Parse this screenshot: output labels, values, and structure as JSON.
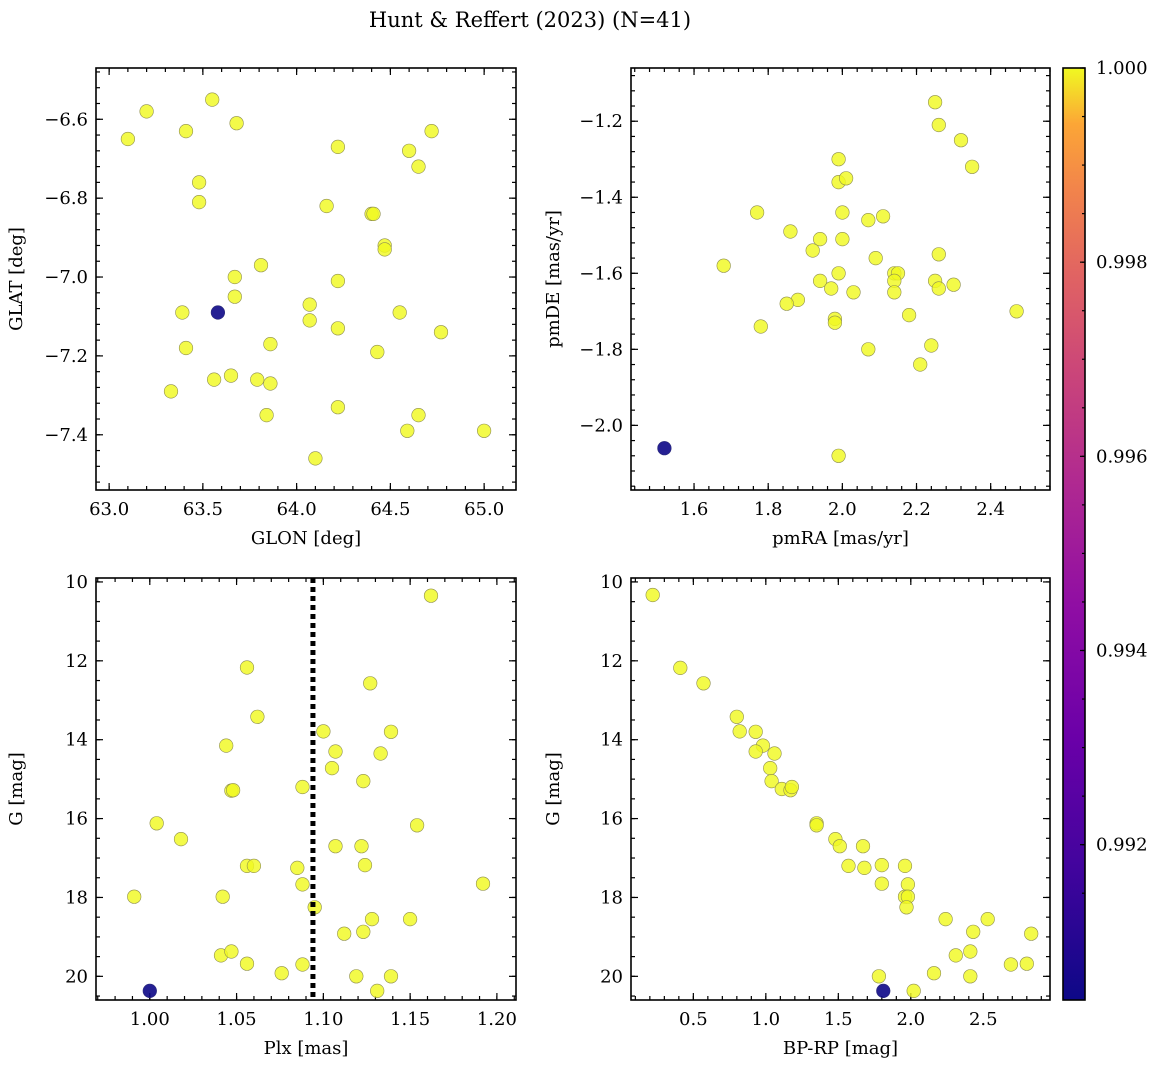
{
  "title": "Hunt & Reffert (2023) (N=41)",
  "colorbar": {
    "cmap": "plasma",
    "vmin": 0.9904,
    "vmax": 1.0,
    "ticks": [
      0.992,
      0.994,
      0.996,
      0.998,
      1.0
    ],
    "tick_labels": [
      "0.992",
      "0.994",
      "0.996",
      "0.998",
      "1.000"
    ]
  },
  "chart_data": [
    {
      "type": "scatter",
      "xlabel": "GLON [deg]",
      "ylabel": "GLAT [deg]",
      "xlim": [
        62.93,
        65.17
      ],
      "ylim": [
        -7.54,
        -6.47
      ],
      "xticks": [
        63.0,
        63.5,
        64.0,
        64.5,
        65.0
      ],
      "xtick_labels": [
        "63.0",
        "63.5",
        "64.0",
        "64.5",
        "65.0"
      ],
      "yticks": [
        -7.4,
        -7.2,
        -7.0,
        -6.8,
        -6.6
      ],
      "ytick_labels": [
        "−7.4",
        "−7.2",
        "−7.0",
        "−6.8",
        "−6.6"
      ],
      "y_inverted": false,
      "points": [
        {
          "x": 63.1,
          "y": -6.65,
          "c": 1.0
        },
        {
          "x": 63.2,
          "y": -6.58,
          "c": 1.0
        },
        {
          "x": 63.41,
          "y": -6.63,
          "c": 1.0
        },
        {
          "x": 63.55,
          "y": -6.55,
          "c": 1.0
        },
        {
          "x": 63.68,
          "y": -6.61,
          "c": 1.0
        },
        {
          "x": 63.48,
          "y": -6.76,
          "c": 1.0
        },
        {
          "x": 63.48,
          "y": -6.81,
          "c": 1.0
        },
        {
          "x": 63.67,
          "y": -7.0,
          "c": 1.0
        },
        {
          "x": 63.67,
          "y": -7.05,
          "c": 1.0
        },
        {
          "x": 63.81,
          "y": -6.97,
          "c": 1.0
        },
        {
          "x": 63.39,
          "y": -7.09,
          "c": 1.0
        },
        {
          "x": 63.41,
          "y": -7.18,
          "c": 1.0
        },
        {
          "x": 63.86,
          "y": -7.17,
          "c": 1.0
        },
        {
          "x": 63.33,
          "y": -7.29,
          "c": 1.0
        },
        {
          "x": 63.56,
          "y": -7.26,
          "c": 1.0
        },
        {
          "x": 63.65,
          "y": -7.25,
          "c": 1.0
        },
        {
          "x": 63.79,
          "y": -7.26,
          "c": 1.0
        },
        {
          "x": 63.86,
          "y": -7.27,
          "c": 1.0
        },
        {
          "x": 63.84,
          "y": -7.35,
          "c": 1.0
        },
        {
          "x": 64.22,
          "y": -6.67,
          "c": 1.0
        },
        {
          "x": 64.16,
          "y": -6.82,
          "c": 1.0
        },
        {
          "x": 64.4,
          "y": -6.84,
          "c": 1.0
        },
        {
          "x": 64.41,
          "y": -6.84,
          "c": 1.0
        },
        {
          "x": 64.47,
          "y": -6.92,
          "c": 1.0
        },
        {
          "x": 64.47,
          "y": -6.93,
          "c": 1.0
        },
        {
          "x": 64.22,
          "y": -7.01,
          "c": 1.0
        },
        {
          "x": 64.07,
          "y": -7.07,
          "c": 1.0
        },
        {
          "x": 64.07,
          "y": -7.11,
          "c": 1.0
        },
        {
          "x": 64.22,
          "y": -7.13,
          "c": 1.0
        },
        {
          "x": 64.55,
          "y": -7.09,
          "c": 1.0
        },
        {
          "x": 64.43,
          "y": -7.19,
          "c": 1.0
        },
        {
          "x": 64.6,
          "y": -6.68,
          "c": 1.0
        },
        {
          "x": 64.72,
          "y": -6.63,
          "c": 1.0
        },
        {
          "x": 64.65,
          "y": -6.72,
          "c": 1.0
        },
        {
          "x": 64.77,
          "y": -7.14,
          "c": 1.0
        },
        {
          "x": 64.22,
          "y": -7.33,
          "c": 1.0
        },
        {
          "x": 64.65,
          "y": -7.35,
          "c": 1.0
        },
        {
          "x": 64.59,
          "y": -7.39,
          "c": 1.0
        },
        {
          "x": 64.1,
          "y": -7.46,
          "c": 1.0
        },
        {
          "x": 65.0,
          "y": -7.39,
          "c": 1.0
        },
        {
          "x": 63.58,
          "y": -7.09,
          "c": 0.9904
        }
      ]
    },
    {
      "type": "scatter",
      "xlabel": "pmRA [mas/yr]",
      "ylabel": "pmDE [mas/yr]",
      "xlim": [
        1.43,
        2.56
      ],
      "ylim": [
        -2.17,
        -1.06
      ],
      "xticks": [
        1.6,
        1.8,
        2.0,
        2.2,
        2.4
      ],
      "xtick_labels": [
        "1.6",
        "1.8",
        "2.0",
        "2.2",
        "2.4"
      ],
      "yticks": [
        -2.0,
        -1.8,
        -1.6,
        -1.4,
        -1.2
      ],
      "ytick_labels": [
        "−2.0",
        "−1.8",
        "−1.6",
        "−1.4",
        "−1.2"
      ],
      "y_inverted": false,
      "points": [
        {
          "x": 2.25,
          "y": -1.15,
          "c": 1.0
        },
        {
          "x": 2.26,
          "y": -1.21,
          "c": 1.0
        },
        {
          "x": 2.32,
          "y": -1.25,
          "c": 1.0
        },
        {
          "x": 2.35,
          "y": -1.32,
          "c": 1.0
        },
        {
          "x": 1.99,
          "y": -1.3,
          "c": 1.0
        },
        {
          "x": 1.99,
          "y": -1.36,
          "c": 1.0
        },
        {
          "x": 2.01,
          "y": -1.35,
          "c": 1.0
        },
        {
          "x": 1.77,
          "y": -1.44,
          "c": 1.0
        },
        {
          "x": 2.0,
          "y": -1.44,
          "c": 1.0
        },
        {
          "x": 2.07,
          "y": -1.46,
          "c": 1.0
        },
        {
          "x": 2.11,
          "y": -1.45,
          "c": 1.0
        },
        {
          "x": 1.86,
          "y": -1.49,
          "c": 1.0
        },
        {
          "x": 1.94,
          "y": -1.51,
          "c": 1.0
        },
        {
          "x": 2.0,
          "y": -1.51,
          "c": 1.0
        },
        {
          "x": 1.92,
          "y": -1.54,
          "c": 1.0
        },
        {
          "x": 1.68,
          "y": -1.58,
          "c": 1.0
        },
        {
          "x": 2.09,
          "y": -1.56,
          "c": 1.0
        },
        {
          "x": 2.26,
          "y": -1.55,
          "c": 1.0
        },
        {
          "x": 1.99,
          "y": -1.6,
          "c": 1.0
        },
        {
          "x": 1.94,
          "y": -1.62,
          "c": 1.0
        },
        {
          "x": 2.14,
          "y": -1.6,
          "c": 1.0
        },
        {
          "x": 2.15,
          "y": -1.6,
          "c": 1.0
        },
        {
          "x": 2.14,
          "y": -1.62,
          "c": 1.0
        },
        {
          "x": 2.25,
          "y": -1.62,
          "c": 1.0
        },
        {
          "x": 2.26,
          "y": -1.64,
          "c": 1.0
        },
        {
          "x": 2.3,
          "y": -1.63,
          "c": 1.0
        },
        {
          "x": 1.97,
          "y": -1.64,
          "c": 1.0
        },
        {
          "x": 2.03,
          "y": -1.65,
          "c": 1.0
        },
        {
          "x": 2.14,
          "y": -1.65,
          "c": 1.0
        },
        {
          "x": 1.88,
          "y": -1.67,
          "c": 1.0
        },
        {
          "x": 1.85,
          "y": -1.68,
          "c": 1.0
        },
        {
          "x": 2.18,
          "y": -1.71,
          "c": 1.0
        },
        {
          "x": 2.47,
          "y": -1.7,
          "c": 1.0
        },
        {
          "x": 1.98,
          "y": -1.72,
          "c": 1.0
        },
        {
          "x": 1.98,
          "y": -1.73,
          "c": 1.0
        },
        {
          "x": 1.78,
          "y": -1.74,
          "c": 1.0
        },
        {
          "x": 2.24,
          "y": -1.79,
          "c": 1.0
        },
        {
          "x": 2.07,
          "y": -1.8,
          "c": 1.0
        },
        {
          "x": 2.21,
          "y": -1.84,
          "c": 1.0
        },
        {
          "x": 1.99,
          "y": -2.08,
          "c": 1.0
        },
        {
          "x": 1.52,
          "y": -2.06,
          "c": 0.9904
        }
      ]
    },
    {
      "type": "scatter",
      "xlabel": "Plx [mas]",
      "ylabel": "G [mag]",
      "xlim": [
        0.969,
        1.211
      ],
      "ylim": [
        20.6,
        9.9
      ],
      "xticks": [
        1.0,
        1.05,
        1.1,
        1.15,
        1.2
      ],
      "xtick_labels": [
        "1.00",
        "1.05",
        "1.10",
        "1.15",
        "1.20"
      ],
      "yticks": [
        10,
        12,
        14,
        16,
        18,
        20
      ],
      "ytick_labels": [
        "10",
        "12",
        "14",
        "16",
        "18",
        "20"
      ],
      "y_inverted": true,
      "vline": 1.094,
      "points": [
        {
          "x": 1.162,
          "y": 10.35,
          "c": 1.0
        },
        {
          "x": 1.056,
          "y": 12.17,
          "c": 1.0
        },
        {
          "x": 1.127,
          "y": 12.57,
          "c": 1.0
        },
        {
          "x": 1.062,
          "y": 13.42,
          "c": 1.0
        },
        {
          "x": 1.1,
          "y": 13.79,
          "c": 1.0
        },
        {
          "x": 1.139,
          "y": 13.8,
          "c": 1.0
        },
        {
          "x": 1.044,
          "y": 14.15,
          "c": 1.0
        },
        {
          "x": 1.107,
          "y": 14.3,
          "c": 1.0
        },
        {
          "x": 1.133,
          "y": 14.35,
          "c": 1.0
        },
        {
          "x": 1.105,
          "y": 14.72,
          "c": 1.0
        },
        {
          "x": 1.123,
          "y": 15.05,
          "c": 1.0
        },
        {
          "x": 1.088,
          "y": 15.2,
          "c": 1.0
        },
        {
          "x": 1.047,
          "y": 15.29,
          "c": 1.0
        },
        {
          "x": 1.048,
          "y": 15.28,
          "c": 1.0
        },
        {
          "x": 1.154,
          "y": 16.17,
          "c": 1.0
        },
        {
          "x": 1.004,
          "y": 16.12,
          "c": 1.0
        },
        {
          "x": 1.018,
          "y": 16.52,
          "c": 1.0
        },
        {
          "x": 1.107,
          "y": 16.7,
          "c": 1.0
        },
        {
          "x": 1.122,
          "y": 16.7,
          "c": 1.0
        },
        {
          "x": 1.056,
          "y": 17.2,
          "c": 1.0
        },
        {
          "x": 1.06,
          "y": 17.2,
          "c": 1.0
        },
        {
          "x": 1.085,
          "y": 17.25,
          "c": 1.0
        },
        {
          "x": 1.124,
          "y": 17.18,
          "c": 1.0
        },
        {
          "x": 1.088,
          "y": 17.67,
          "c": 1.0
        },
        {
          "x": 1.192,
          "y": 17.65,
          "c": 1.0
        },
        {
          "x": 0.991,
          "y": 17.98,
          "c": 1.0
        },
        {
          "x": 1.042,
          "y": 17.98,
          "c": 1.0
        },
        {
          "x": 1.095,
          "y": 18.25,
          "c": 1.0
        },
        {
          "x": 1.128,
          "y": 18.55,
          "c": 1.0
        },
        {
          "x": 1.15,
          "y": 18.55,
          "c": 1.0
        },
        {
          "x": 1.112,
          "y": 18.92,
          "c": 1.0
        },
        {
          "x": 1.123,
          "y": 18.87,
          "c": 1.0
        },
        {
          "x": 1.041,
          "y": 19.47,
          "c": 1.0
        },
        {
          "x": 1.047,
          "y": 19.37,
          "c": 1.0
        },
        {
          "x": 1.056,
          "y": 19.68,
          "c": 1.0
        },
        {
          "x": 1.076,
          "y": 19.92,
          "c": 1.0
        },
        {
          "x": 1.088,
          "y": 19.7,
          "c": 1.0
        },
        {
          "x": 1.119,
          "y": 20.0,
          "c": 1.0
        },
        {
          "x": 1.139,
          "y": 20.0,
          "c": 1.0
        },
        {
          "x": 1.131,
          "y": 20.37,
          "c": 1.0
        },
        {
          "x": 1.0,
          "y": 20.37,
          "c": 0.9904
        }
      ]
    },
    {
      "type": "scatter",
      "xlabel": "BP-RP [mag]",
      "ylabel": "G [mag]",
      "xlim": [
        0.07,
        2.96
      ],
      "ylim": [
        20.6,
        9.9
      ],
      "xticks": [
        0.5,
        1.0,
        1.5,
        2.0,
        2.5
      ],
      "xtick_labels": [
        "0.5",
        "1.0",
        "1.5",
        "2.0",
        "2.5"
      ],
      "yticks": [
        10,
        12,
        14,
        16,
        18,
        20
      ],
      "ytick_labels": [
        "10",
        "12",
        "14",
        "16",
        "18",
        "20"
      ],
      "y_inverted": true,
      "points": [
        {
          "x": 0.22,
          "y": 10.33,
          "c": 1.0
        },
        {
          "x": 0.41,
          "y": 12.18,
          "c": 1.0
        },
        {
          "x": 0.57,
          "y": 12.57,
          "c": 1.0
        },
        {
          "x": 0.8,
          "y": 13.42,
          "c": 1.0
        },
        {
          "x": 0.82,
          "y": 13.79,
          "c": 1.0
        },
        {
          "x": 0.93,
          "y": 13.8,
          "c": 1.0
        },
        {
          "x": 0.98,
          "y": 14.15,
          "c": 1.0
        },
        {
          "x": 0.93,
          "y": 14.3,
          "c": 1.0
        },
        {
          "x": 1.06,
          "y": 14.35,
          "c": 1.0
        },
        {
          "x": 1.03,
          "y": 14.72,
          "c": 1.0
        },
        {
          "x": 1.04,
          "y": 15.05,
          "c": 1.0
        },
        {
          "x": 1.11,
          "y": 15.25,
          "c": 1.0
        },
        {
          "x": 1.17,
          "y": 15.28,
          "c": 1.0
        },
        {
          "x": 1.18,
          "y": 15.2,
          "c": 1.0
        },
        {
          "x": 1.35,
          "y": 16.12,
          "c": 1.0
        },
        {
          "x": 1.35,
          "y": 16.17,
          "c": 1.0
        },
        {
          "x": 1.48,
          "y": 16.52,
          "c": 1.0
        },
        {
          "x": 1.51,
          "y": 16.7,
          "c": 1.0
        },
        {
          "x": 1.67,
          "y": 16.7,
          "c": 1.0
        },
        {
          "x": 1.57,
          "y": 17.2,
          "c": 1.0
        },
        {
          "x": 1.68,
          "y": 17.25,
          "c": 1.0
        },
        {
          "x": 1.8,
          "y": 17.18,
          "c": 1.0
        },
        {
          "x": 1.96,
          "y": 17.2,
          "c": 1.0
        },
        {
          "x": 1.8,
          "y": 17.65,
          "c": 1.0
        },
        {
          "x": 1.98,
          "y": 17.67,
          "c": 1.0
        },
        {
          "x": 1.96,
          "y": 17.98,
          "c": 1.0
        },
        {
          "x": 1.98,
          "y": 17.98,
          "c": 1.0
        },
        {
          "x": 1.97,
          "y": 18.25,
          "c": 1.0
        },
        {
          "x": 2.24,
          "y": 18.55,
          "c": 1.0
        },
        {
          "x": 2.53,
          "y": 18.55,
          "c": 1.0
        },
        {
          "x": 2.43,
          "y": 18.87,
          "c": 1.0
        },
        {
          "x": 2.83,
          "y": 18.92,
          "c": 1.0
        },
        {
          "x": 2.31,
          "y": 19.47,
          "c": 1.0
        },
        {
          "x": 2.41,
          "y": 19.37,
          "c": 1.0
        },
        {
          "x": 2.69,
          "y": 19.7,
          "c": 1.0
        },
        {
          "x": 2.8,
          "y": 19.68,
          "c": 1.0
        },
        {
          "x": 2.16,
          "y": 19.92,
          "c": 1.0
        },
        {
          "x": 1.78,
          "y": 20.0,
          "c": 1.0
        },
        {
          "x": 2.41,
          "y": 20.0,
          "c": 1.0
        },
        {
          "x": 2.02,
          "y": 20.37,
          "c": 1.0
        },
        {
          "x": 1.81,
          "y": 20.37,
          "c": 0.9904
        }
      ]
    }
  ]
}
